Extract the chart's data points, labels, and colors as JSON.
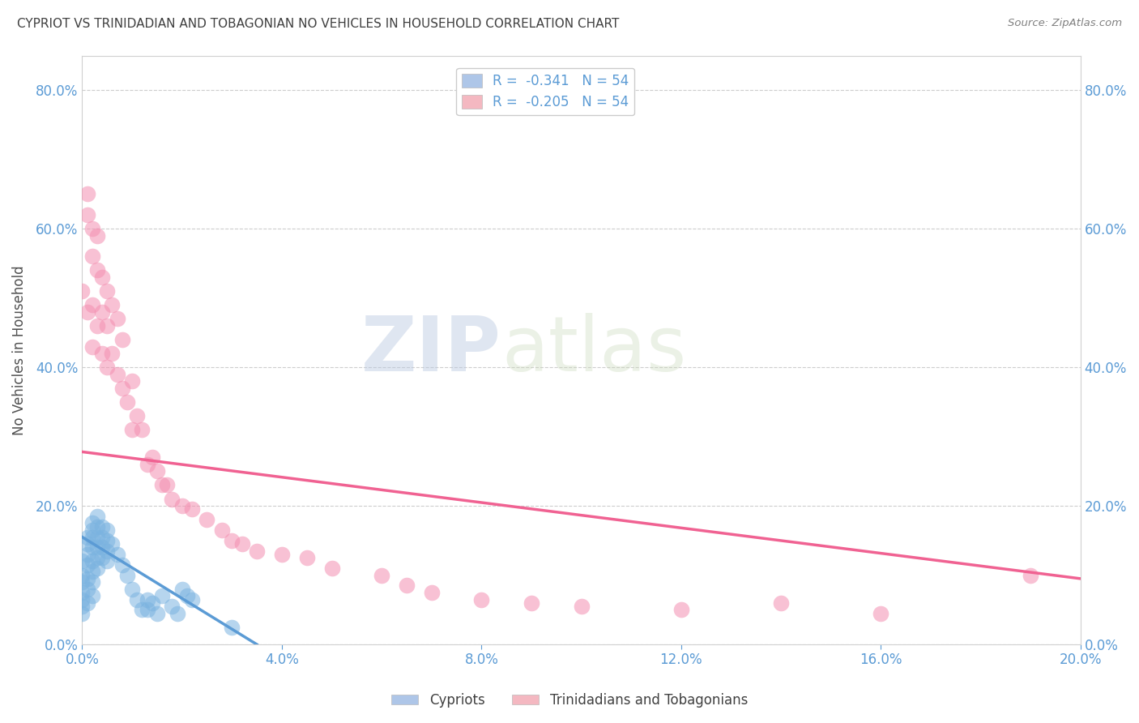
{
  "title": "CYPRIOT VS TRINIDADIAN AND TOBAGONIAN NO VEHICLES IN HOUSEHOLD CORRELATION CHART",
  "source": "Source: ZipAtlas.com",
  "ylabel": "No Vehicles in Household",
  "xlim": [
    0.0,
    0.2
  ],
  "ylim": [
    0.0,
    0.85
  ],
  "xticks": [
    0.0,
    0.04,
    0.08,
    0.12,
    0.16,
    0.2
  ],
  "yticks": [
    0.0,
    0.2,
    0.4,
    0.6,
    0.8
  ],
  "legend_entries": [
    {
      "color": "#aec6e8",
      "R": "-0.341",
      "N": "54"
    },
    {
      "color": "#f4b8c1",
      "R": "-0.205",
      "N": "54"
    }
  ],
  "legend_labels": [
    "Cypriots",
    "Trinidadians and Tobagonians"
  ],
  "watermark_zip": "ZIP",
  "watermark_atlas": "atlas",
  "blue_color": "#5b9bd5",
  "pink_color": "#f06292",
  "blue_scatter_color": "#7ab3e0",
  "pink_scatter_color": "#f48fb1",
  "cypriot_x": [
    0.0,
    0.0,
    0.0,
    0.0,
    0.0,
    0.0,
    0.0,
    0.001,
    0.001,
    0.001,
    0.001,
    0.001,
    0.001,
    0.001,
    0.002,
    0.002,
    0.002,
    0.002,
    0.002,
    0.002,
    0.002,
    0.002,
    0.003,
    0.003,
    0.003,
    0.003,
    0.003,
    0.003,
    0.004,
    0.004,
    0.004,
    0.004,
    0.005,
    0.005,
    0.005,
    0.005,
    0.006,
    0.007,
    0.008,
    0.009,
    0.01,
    0.011,
    0.012,
    0.013,
    0.013,
    0.014,
    0.015,
    0.016,
    0.018,
    0.019,
    0.02,
    0.021,
    0.022,
    0.03
  ],
  "cypriot_y": [
    0.12,
    0.1,
    0.09,
    0.075,
    0.065,
    0.055,
    0.045,
    0.155,
    0.145,
    0.13,
    0.115,
    0.095,
    0.08,
    0.06,
    0.175,
    0.165,
    0.155,
    0.14,
    0.12,
    0.105,
    0.09,
    0.07,
    0.185,
    0.17,
    0.155,
    0.14,
    0.125,
    0.11,
    0.17,
    0.155,
    0.14,
    0.125,
    0.165,
    0.15,
    0.135,
    0.12,
    0.145,
    0.13,
    0.115,
    0.1,
    0.08,
    0.065,
    0.05,
    0.065,
    0.05,
    0.06,
    0.045,
    0.07,
    0.055,
    0.045,
    0.08,
    0.07,
    0.065,
    0.025
  ],
  "trini_x": [
    0.0,
    0.001,
    0.001,
    0.001,
    0.002,
    0.002,
    0.002,
    0.002,
    0.003,
    0.003,
    0.003,
    0.004,
    0.004,
    0.004,
    0.005,
    0.005,
    0.005,
    0.006,
    0.006,
    0.007,
    0.007,
    0.008,
    0.008,
    0.009,
    0.01,
    0.01,
    0.011,
    0.012,
    0.013,
    0.014,
    0.015,
    0.016,
    0.017,
    0.018,
    0.02,
    0.022,
    0.025,
    0.028,
    0.03,
    0.032,
    0.035,
    0.04,
    0.045,
    0.05,
    0.06,
    0.065,
    0.07,
    0.08,
    0.09,
    0.1,
    0.12,
    0.14,
    0.16,
    0.19
  ],
  "trini_y": [
    0.51,
    0.62,
    0.65,
    0.48,
    0.6,
    0.56,
    0.49,
    0.43,
    0.59,
    0.54,
    0.46,
    0.53,
    0.48,
    0.42,
    0.51,
    0.46,
    0.4,
    0.49,
    0.42,
    0.47,
    0.39,
    0.44,
    0.37,
    0.35,
    0.38,
    0.31,
    0.33,
    0.31,
    0.26,
    0.27,
    0.25,
    0.23,
    0.23,
    0.21,
    0.2,
    0.195,
    0.18,
    0.165,
    0.15,
    0.145,
    0.135,
    0.13,
    0.125,
    0.11,
    0.1,
    0.085,
    0.075,
    0.065,
    0.06,
    0.055,
    0.05,
    0.06,
    0.045,
    0.1
  ],
  "blue_line_x": [
    0.0,
    0.035
  ],
  "blue_line_y": [
    0.155,
    0.0
  ],
  "pink_line_x": [
    0.0,
    0.2
  ],
  "pink_line_y": [
    0.278,
    0.095
  ],
  "background_color": "#ffffff",
  "grid_color": "#c8c8c8",
  "title_color": "#404040",
  "axis_color": "#5b9bd5",
  "tick_color": "#5b9bd5"
}
